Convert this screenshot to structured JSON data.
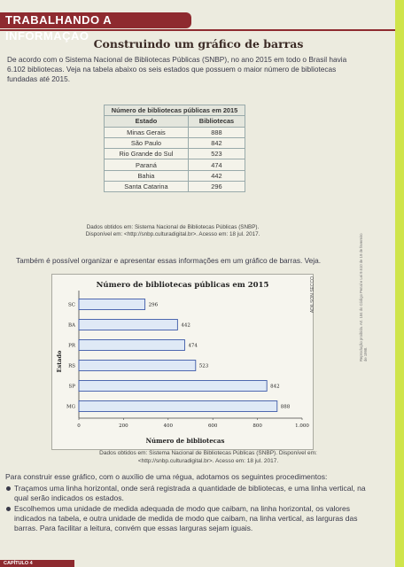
{
  "section_header": "TRABALHANDO A INFORMAÇÃO",
  "page_title": "Construindo um gráfico de barras",
  "intro": "De acordo com o Sistema Nacional de Bibliotecas Públicas (SNBP), no ano 2015 em todo o Brasil havia 6.102 bibliotecas. Veja na tabela abaixo os seis estados que possuem o maior número de bibliotecas fundadas até 2015.",
  "table": {
    "caption": "Número de bibliotecas públicas em 2015",
    "col_estado": "Estado",
    "col_bibliotecas": "Bibliotecas",
    "rows": [
      {
        "estado": "Minas Gerais",
        "valor": "888"
      },
      {
        "estado": "São Paulo",
        "valor": "842"
      },
      {
        "estado": "Rio Grande do Sul",
        "valor": "523"
      },
      {
        "estado": "Paraná",
        "valor": "474"
      },
      {
        "estado": "Bahia",
        "valor": "442"
      },
      {
        "estado": "Santa Catarina",
        "valor": "296"
      }
    ],
    "source": "Dados obtidos em: Sistema Nacional de Bibliotecas Públicas (SNBP). Disponível em: <http://snbp.culturadigital.br>. Acesso em: 18 jul. 2017."
  },
  "intro2": "Também é possível organizar e apresentar essas informações em um gráfico de barras. Veja.",
  "chart_data": {
    "type": "bar",
    "orientation": "horizontal",
    "title": "Número de bibliotecas públicas em 2015",
    "xlabel": "Número de bibliotecas",
    "ylabel": "Estado",
    "categories": [
      "SC",
      "BA",
      "PR",
      "RS",
      "SP",
      "MG"
    ],
    "values": [
      296,
      442,
      474,
      523,
      842,
      888
    ],
    "xlim": [
      0,
      1000
    ],
    "xticks": [
      "0",
      "200",
      "400",
      "600",
      "800",
      "1.000"
    ],
    "bar_color": "#dfe9f6",
    "bar_stroke": "#3d5aa8",
    "grid": false
  },
  "photo_credit": "ADILSON SECCO",
  "legal_note": "Reprodução proibida. Art. 184 do Código Penal e Lei 9.610 de 19 de fevereiro de 1998.",
  "chart_source": "Dados obtidos em: Sistema Nacional de Bibliotecas Públicas (SNBP). Disponível em: <http://snbp.culturadigital.br>. Acesso em: 18 jul. 2017.",
  "body": {
    "paragraph": "Para construir esse gráfico, com o auxílio de uma régua, adotamos os seguintes procedimentos:",
    "bullets": [
      "Traçamos uma linha horizontal, onde será registrada a quantidade de bibliotecas, e uma linha vertical, na qual serão indicados os estados.",
      "Escolhemos uma unidade de medida adequada de modo que caibam, na linha horizontal, os valores indicados na tabela, e outra unidade de medida de modo que caibam, na linha vertical, as larguras das barras. Para facilitar a leitura, convém que essas larguras sejam iguais."
    ]
  },
  "footer_tag": "CAPÍTULO 4",
  "colors": {
    "accent": "#8e2a2f",
    "strip": "#cfe44b"
  }
}
